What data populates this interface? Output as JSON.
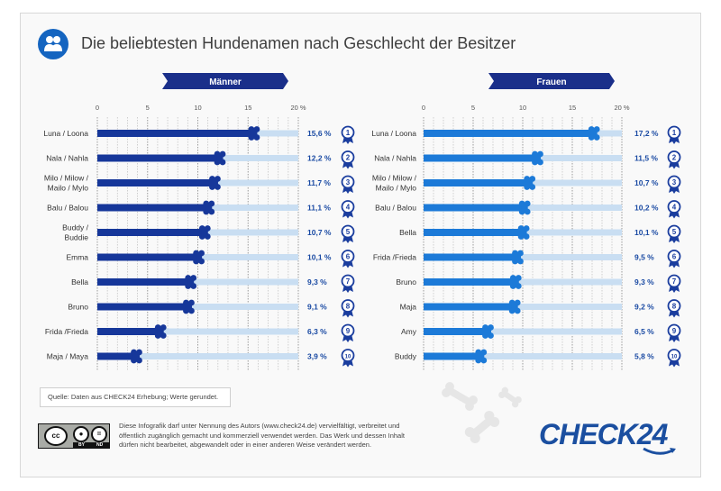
{
  "title": "Die beliebtesten Hundenamen nach Geschlecht der Besitzer",
  "source_note": "Quelle: Daten aus CHECK24 Erhebung; Werte gerundet.",
  "license_text": "Diese Infografik darf unter Nennung des Autors (www.check24.de) vervielfältigt, verbreitet und öffentlich zugänglich gemacht und kommerziell verwendet werden. Das Werk und dessen Inhalt dürfen nicht bearbeitet, abgewandelt oder in einer anderen Weise verändert werden.",
  "license_badge": {
    "text": "cc",
    "by": "BY",
    "nd": "ND"
  },
  "brand": "CHECK24",
  "colors": {
    "men_bar": "#16379a",
    "women_bar": "#1c7ad8",
    "track": "#c9def2",
    "value_text": "#1a4aa3",
    "rank_badge": "#1a3d9e",
    "header_bg": "#1a2f8a"
  },
  "chart_data": [
    {
      "type": "bar",
      "title": "Männer",
      "xlim": [
        0,
        20
      ],
      "ticks": [
        "0",
        "5",
        "10",
        "15",
        "20 %"
      ],
      "categories": [
        [
          "Luna / Loona"
        ],
        [
          "Nala / Nahla"
        ],
        [
          "Milo / Milow /",
          "Mailo / Mylo"
        ],
        [
          "Balu / Balou"
        ],
        [
          "Buddy /",
          "Buddie"
        ],
        [
          "Emma"
        ],
        [
          "Bella"
        ],
        [
          "Bruno"
        ],
        [
          "Frida /Frieda"
        ],
        [
          "Maja / Maya"
        ]
      ],
      "values": [
        15.6,
        12.2,
        11.7,
        11.1,
        10.7,
        10.1,
        9.3,
        9.1,
        6.3,
        3.9
      ],
      "value_labels": [
        "15,6 %",
        "12,2 %",
        "11,7 %",
        "11,1 %",
        "10,7 %",
        "10,1 %",
        "9,3 %",
        "9,1 %",
        "6,3 %",
        "3,9 %"
      ],
      "ranks": [
        "1",
        "2",
        "3",
        "4",
        "5",
        "6",
        "7",
        "8",
        "9",
        "10"
      ]
    },
    {
      "type": "bar",
      "title": "Frauen",
      "xlim": [
        0,
        20
      ],
      "ticks": [
        "0",
        "5",
        "10",
        "15",
        "20 %"
      ],
      "categories": [
        [
          "Luna / Loona"
        ],
        [
          "Nala / Nahla"
        ],
        [
          "Milo / Milow /",
          "Mailo / Mylo"
        ],
        [
          "Balu / Balou"
        ],
        [
          "Bella"
        ],
        [
          "Frida /Frieda"
        ],
        [
          "Bruno"
        ],
        [
          "Maja"
        ],
        [
          "Amy"
        ],
        [
          "Buddy"
        ]
      ],
      "values": [
        17.2,
        11.5,
        10.7,
        10.2,
        10.1,
        9.5,
        9.3,
        9.2,
        6.5,
        5.8
      ],
      "value_labels": [
        "17,2 %",
        "11,5 %",
        "10,7 %",
        "10,2 %",
        "10,1 %",
        "9,5 %",
        "9,3 %",
        "9,2 %",
        "6,5 %",
        "5,8 %"
      ],
      "ranks": [
        "1",
        "2",
        "3",
        "4",
        "5",
        "6",
        "7",
        "8",
        "9",
        "10"
      ]
    }
  ]
}
